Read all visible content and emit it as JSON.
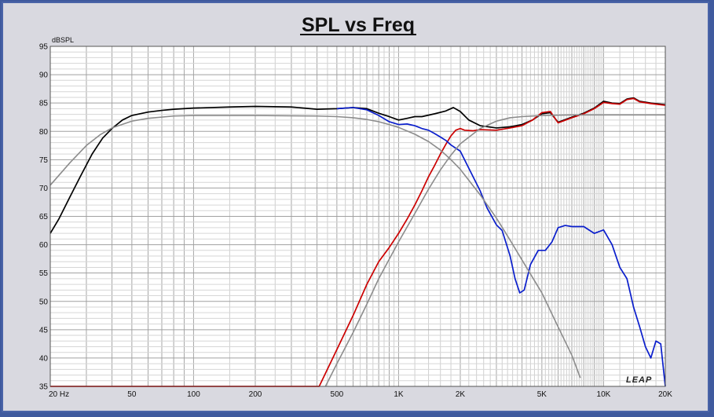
{
  "chart_data": {
    "type": "line",
    "title": "SPL vs Freq",
    "ylabel": "dBSPL",
    "xlabel": "",
    "xscale": "log",
    "xlim": [
      20,
      20000
    ],
    "ylim": [
      35,
      95
    ],
    "grid": true,
    "x_tick_labels": [
      {
        "value": 20,
        "label": "20  Hz"
      },
      {
        "value": 50,
        "label": "50"
      },
      {
        "value": 100,
        "label": "100"
      },
      {
        "value": 200,
        "label": "200"
      },
      {
        "value": 500,
        "label": "500"
      },
      {
        "value": 1000,
        "label": "1K"
      },
      {
        "value": 2000,
        "label": "2K"
      },
      {
        "value": 5000,
        "label": "5K"
      },
      {
        "value": 10000,
        "label": "10K"
      },
      {
        "value": 20000,
        "label": "20K"
      }
    ],
    "y_tick_labels": [
      "95",
      "90",
      "85",
      "80",
      "75",
      "70",
      "65",
      "60",
      "55",
      "50",
      "45",
      "40",
      "35"
    ],
    "logo": "LEAP",
    "series": [
      {
        "color": "#000000",
        "points": [
          [
            20,
            62
          ],
          [
            22,
            64.5
          ],
          [
            25,
            68.5
          ],
          [
            28,
            72
          ],
          [
            32,
            76
          ],
          [
            36,
            78.8
          ],
          [
            40,
            80.5
          ],
          [
            45,
            82
          ],
          [
            50,
            82.8
          ],
          [
            60,
            83.4
          ],
          [
            70,
            83.7
          ],
          [
            80,
            83.9
          ],
          [
            100,
            84.1
          ],
          [
            150,
            84.3
          ],
          [
            200,
            84.4
          ],
          [
            300,
            84.3
          ],
          [
            400,
            83.9
          ],
          [
            500,
            84
          ],
          [
            600,
            84.2
          ],
          [
            700,
            84
          ],
          [
            800,
            83.2
          ],
          [
            900,
            82.6
          ],
          [
            1000,
            82
          ],
          [
            1100,
            82.3
          ],
          [
            1200,
            82.6
          ],
          [
            1300,
            82.6
          ],
          [
            1500,
            83.1
          ],
          [
            1700,
            83.6
          ],
          [
            1850,
            84.2
          ],
          [
            2000,
            83.5
          ],
          [
            2200,
            82
          ],
          [
            2500,
            81
          ],
          [
            3000,
            80.6
          ],
          [
            3500,
            80.8
          ],
          [
            4000,
            81.2
          ],
          [
            4500,
            82
          ],
          [
            5000,
            83.1
          ],
          [
            5500,
            83.3
          ],
          [
            6000,
            81.6
          ],
          [
            7000,
            82.5
          ],
          [
            8000,
            83.2
          ],
          [
            9000,
            84.1
          ],
          [
            10000,
            85.3
          ],
          [
            11000,
            85
          ],
          [
            12000,
            84.9
          ],
          [
            13000,
            85.7
          ],
          [
            14000,
            85.9
          ],
          [
            15000,
            85.3
          ],
          [
            17000,
            85
          ],
          [
            20000,
            84.7
          ]
        ]
      },
      {
        "color": "#cc0000",
        "points": [
          [
            20,
            35
          ],
          [
            410,
            35
          ],
          [
            500,
            41.5
          ],
          [
            600,
            47.5
          ],
          [
            700,
            53
          ],
          [
            800,
            57
          ],
          [
            900,
            59.5
          ],
          [
            1000,
            62
          ],
          [
            1100,
            64.5
          ],
          [
            1200,
            67
          ],
          [
            1300,
            69.5
          ],
          [
            1400,
            72
          ],
          [
            1500,
            74
          ],
          [
            1600,
            76
          ],
          [
            1700,
            77.7
          ],
          [
            1800,
            79.2
          ],
          [
            1900,
            80.2
          ],
          [
            2000,
            80.5
          ],
          [
            2100,
            80.2
          ],
          [
            2300,
            80.1
          ],
          [
            2500,
            80.3
          ],
          [
            3000,
            80.2
          ],
          [
            3500,
            80.6
          ],
          [
            4000,
            81
          ],
          [
            4500,
            82
          ],
          [
            5000,
            83.3
          ],
          [
            5500,
            83.5
          ],
          [
            6000,
            81.5
          ],
          [
            7000,
            82.4
          ],
          [
            8000,
            83.1
          ],
          [
            9000,
            84
          ],
          [
            10000,
            85.1
          ],
          [
            11000,
            84.9
          ],
          [
            12000,
            84.8
          ],
          [
            13000,
            85.6
          ],
          [
            14000,
            85.8
          ],
          [
            15000,
            85.2
          ],
          [
            17000,
            84.9
          ],
          [
            20000,
            84.6
          ]
        ]
      },
      {
        "color": "#0a1ecc",
        "points": [
          [
            500,
            84
          ],
          [
            600,
            84.2
          ],
          [
            700,
            83.8
          ],
          [
            800,
            82.8
          ],
          [
            900,
            81.7
          ],
          [
            1000,
            81.2
          ],
          [
            1100,
            81.3
          ],
          [
            1200,
            81
          ],
          [
            1300,
            80.5
          ],
          [
            1400,
            80.2
          ],
          [
            1500,
            79.6
          ],
          [
            1600,
            79
          ],
          [
            1700,
            78.4
          ],
          [
            1800,
            77.6
          ],
          [
            2000,
            76.5
          ],
          [
            2200,
            73.5
          ],
          [
            2500,
            69.5
          ],
          [
            2700,
            66.5
          ],
          [
            3000,
            63.5
          ],
          [
            3200,
            62.5
          ],
          [
            3500,
            58
          ],
          [
            3700,
            54
          ],
          [
            3900,
            51.5
          ],
          [
            4100,
            52
          ],
          [
            4400,
            56.5
          ],
          [
            4800,
            59
          ],
          [
            5200,
            59
          ],
          [
            5600,
            60.5
          ],
          [
            6000,
            63
          ],
          [
            6500,
            63.4
          ],
          [
            7000,
            63.2
          ],
          [
            8000,
            63.2
          ],
          [
            9000,
            62
          ],
          [
            10000,
            62.6
          ],
          [
            11000,
            60
          ],
          [
            12000,
            56
          ],
          [
            13000,
            54
          ],
          [
            14000,
            49
          ],
          [
            15000,
            45.5
          ],
          [
            16000,
            42
          ],
          [
            17000,
            40
          ],
          [
            18000,
            43
          ],
          [
            19000,
            42.5
          ],
          [
            20000,
            35
          ]
        ]
      },
      {
        "color": "#8c8c8c",
        "points": [
          [
            20,
            70.5
          ],
          [
            25,
            74.5
          ],
          [
            30,
            77.5
          ],
          [
            35,
            79.4
          ],
          [
            40,
            80.6
          ],
          [
            50,
            81.8
          ],
          [
            60,
            82.3
          ],
          [
            80,
            82.7
          ],
          [
            100,
            82.8
          ],
          [
            200,
            82.8
          ],
          [
            400,
            82.7
          ],
          [
            500,
            82.6
          ],
          [
            600,
            82.4
          ],
          [
            700,
            82.1
          ],
          [
            800,
            81.7
          ],
          [
            900,
            81.2
          ],
          [
            1000,
            80.7
          ],
          [
            1200,
            79.5
          ],
          [
            1400,
            78.2
          ],
          [
            1600,
            76.7
          ],
          [
            1800,
            75
          ],
          [
            2000,
            73.3
          ],
          [
            2500,
            68.8
          ],
          [
            3000,
            64.7
          ],
          [
            3500,
            60.8
          ],
          [
            4000,
            57.3
          ],
          [
            5000,
            51.5
          ],
          [
            6000,
            45.5
          ],
          [
            7000,
            40.5
          ],
          [
            7700,
            36.5
          ]
        ]
      },
      {
        "color": "#8c8c8c",
        "points": [
          [
            440,
            35
          ],
          [
            500,
            39
          ],
          [
            600,
            44.5
          ],
          [
            700,
            49.5
          ],
          [
            800,
            54
          ],
          [
            1000,
            60.5
          ],
          [
            1200,
            65.5
          ],
          [
            1400,
            69.8
          ],
          [
            1600,
            73.2
          ],
          [
            1800,
            75.8
          ],
          [
            2000,
            77.8
          ],
          [
            2500,
            80.5
          ],
          [
            3000,
            81.8
          ],
          [
            3500,
            82.4
          ],
          [
            4000,
            82.6
          ],
          [
            5000,
            82.8
          ],
          [
            7000,
            82.9
          ],
          [
            10000,
            82.9
          ],
          [
            20000,
            82.9
          ]
        ]
      }
    ]
  }
}
